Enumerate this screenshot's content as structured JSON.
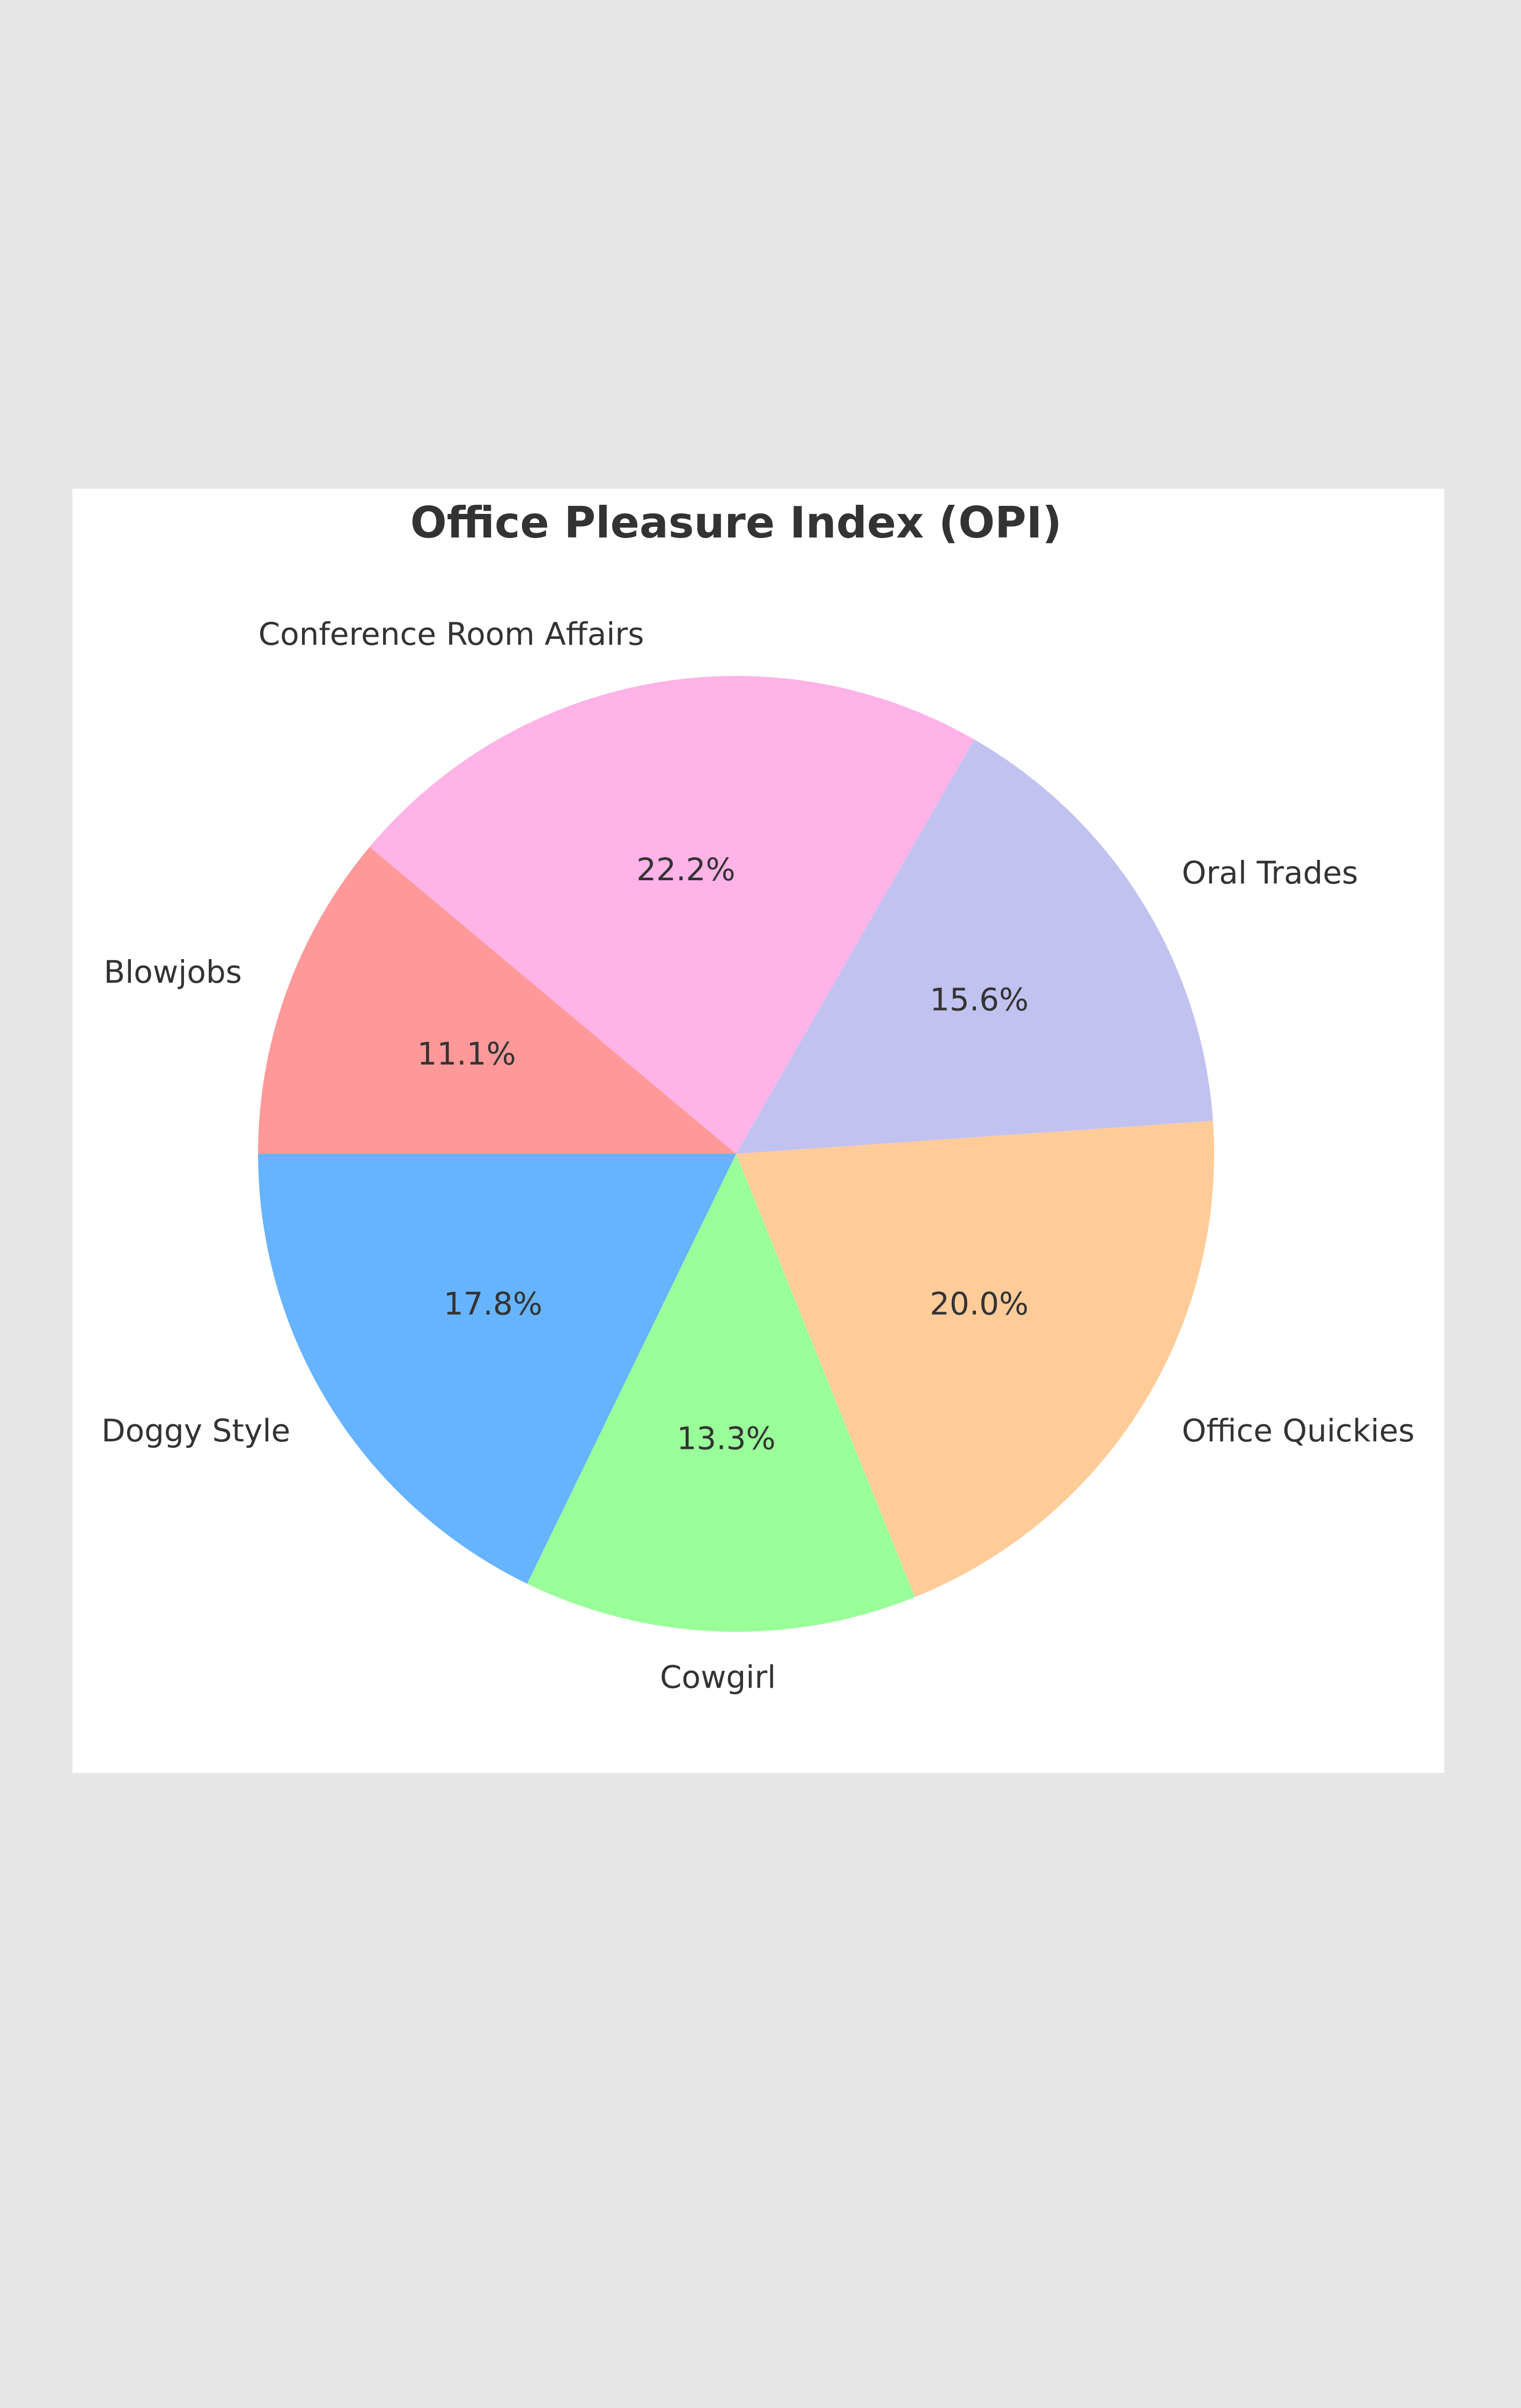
{
  "chart_data": {
    "type": "pie",
    "title": "Office Pleasure Index (OPI)",
    "categories": [
      "Blowjobs",
      "Conference Room Affairs",
      "Oral Trades",
      "Office Quickies",
      "Cowgirl",
      "Doggy Style"
    ],
    "values": [
      11.1,
      22.2,
      15.6,
      20.0,
      13.3,
      17.8
    ],
    "value_labels": [
      "11.1%",
      "22.2%",
      "15.6%",
      "20.0%",
      "13.3%",
      "17.8%"
    ],
    "colors": [
      "#ff9999",
      "#ffb3e6",
      "#c2c2f0",
      "#ffcc99",
      "#99ff99",
      "#66b3ff"
    ]
  }
}
